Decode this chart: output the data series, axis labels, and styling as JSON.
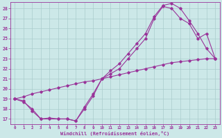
{
  "xlabel": "Windchill (Refroidissement éolien,°C)",
  "bg_color": "#cce8e8",
  "grid_color": "#aacccc",
  "line_color": "#993399",
  "xlim": [
    -0.5,
    23.5
  ],
  "ylim": [
    16.5,
    28.6
  ],
  "yticks": [
    17,
    18,
    19,
    20,
    21,
    22,
    23,
    24,
    25,
    26,
    27,
    28
  ],
  "xticks": [
    0,
    1,
    2,
    3,
    4,
    5,
    6,
    7,
    8,
    9,
    10,
    11,
    12,
    13,
    14,
    15,
    16,
    17,
    18,
    19,
    20,
    21,
    22,
    23
  ],
  "line1_x": [
    0,
    1,
    2,
    3,
    4,
    5,
    6,
    7,
    8,
    9,
    10,
    11,
    12,
    13,
    14,
    15,
    16,
    17,
    18,
    19,
    20,
    21,
    22,
    23
  ],
  "line1_y": [
    19.0,
    18.8,
    17.8,
    17.0,
    17.1,
    17.0,
    17.0,
    16.8,
    18.2,
    19.5,
    21.0,
    21.8,
    22.5,
    23.5,
    24.5,
    25.5,
    27.2,
    28.3,
    28.5,
    28.0,
    26.8,
    25.5,
    24.0,
    23.0
  ],
  "line2_x": [
    0,
    1,
    2,
    3,
    4,
    5,
    6,
    7,
    8,
    9,
    10,
    11,
    12,
    13,
    14,
    15,
    16,
    17,
    18,
    19,
    20,
    21,
    22,
    23
  ],
  "line2_y": [
    19.0,
    18.7,
    18.0,
    17.0,
    17.0,
    17.0,
    17.0,
    16.8,
    18.0,
    19.3,
    21.0,
    21.5,
    22.0,
    23.0,
    24.0,
    25.0,
    27.0,
    28.2,
    28.0,
    27.0,
    26.5,
    25.0,
    25.5,
    23.0
  ],
  "line3_x": [
    0,
    1,
    2,
    3,
    4,
    5,
    6,
    7,
    8,
    9,
    10,
    11,
    12,
    13,
    14,
    15,
    16,
    17,
    18,
    19,
    20,
    21,
    22,
    23
  ],
  "line3_y": [
    19.0,
    19.2,
    19.5,
    19.7,
    19.9,
    20.1,
    20.3,
    20.5,
    20.7,
    20.8,
    21.0,
    21.2,
    21.4,
    21.6,
    21.8,
    22.0,
    22.2,
    22.4,
    22.6,
    22.7,
    22.8,
    22.9,
    23.0,
    23.0
  ]
}
